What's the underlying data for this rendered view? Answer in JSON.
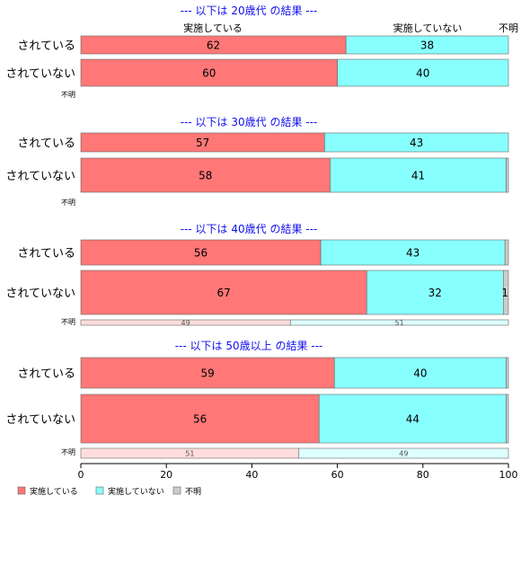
{
  "chart_data": {
    "type": "bar",
    "orientation": "horizontal",
    "stacked": "percent",
    "xlim": [
      0,
      100
    ],
    "x_ticks": [
      "0",
      "20",
      "40",
      "60",
      "80",
      "100"
    ],
    "header_labels": [
      "実施している",
      "実施していない",
      "不明"
    ],
    "legend": {
      "placement": "bottom-left",
      "entries": [
        {
          "name": "実施している",
          "color": "#ff7777"
        },
        {
          "name": "実施していない",
          "color": "#88ffff"
        },
        {
          "name": "不明",
          "color": "#cccccc"
        }
      ]
    },
    "panels": [
      {
        "title": "--- 以下は 20歳代 の結果 ---",
        "rows": [
          {
            "label": "されている",
            "values": [
              62,
              38,
              0
            ],
            "labels": [
              "62",
              "38",
              ""
            ]
          },
          {
            "label": "されていない",
            "values": [
              60,
              40,
              0
            ],
            "labels": [
              "60",
              "40",
              ""
            ]
          },
          {
            "label": "不明",
            "values": [
              0,
              0,
              0
            ],
            "labels": [
              "",
              "",
              ""
            ]
          }
        ]
      },
      {
        "title": "--- 以下は 30歳代 の結果 ---",
        "rows": [
          {
            "label": "されている",
            "values": [
              57,
              43,
              0
            ],
            "labels": [
              "57",
              "43",
              ""
            ]
          },
          {
            "label": "されていない",
            "values": [
              58,
              41,
              0.5
            ],
            "labels": [
              "58",
              "41",
              ""
            ]
          },
          {
            "label": "不明",
            "values": [
              0,
              0,
              0
            ],
            "labels": [
              "",
              "",
              ""
            ]
          }
        ]
      },
      {
        "title": "--- 以下は 40歳代 の結果 ---",
        "rows": [
          {
            "label": "されている",
            "values": [
              56,
              43,
              0.8
            ],
            "labels": [
              "56",
              "43",
              ""
            ]
          },
          {
            "label": "されていない",
            "values": [
              67,
              32,
              1.2
            ],
            "labels": [
              "67",
              "32",
              "1"
            ]
          },
          {
            "label": "不明",
            "values": [
              49,
              51,
              0
            ],
            "labels": [
              "49",
              "51",
              ""
            ]
          }
        ]
      },
      {
        "title": "--- 以下は 50歳以上 の結果 ---",
        "rows": [
          {
            "label": "されている",
            "values": [
              59,
              40,
              0.5
            ],
            "labels": [
              "59",
              "40",
              ""
            ]
          },
          {
            "label": "されていない",
            "values": [
              56,
              44,
              0.5
            ],
            "labels": [
              "56",
              "44",
              ""
            ]
          },
          {
            "label": "不明",
            "values": [
              51,
              49,
              0
            ],
            "labels": [
              "51",
              "49",
              ""
            ]
          }
        ]
      }
    ]
  }
}
